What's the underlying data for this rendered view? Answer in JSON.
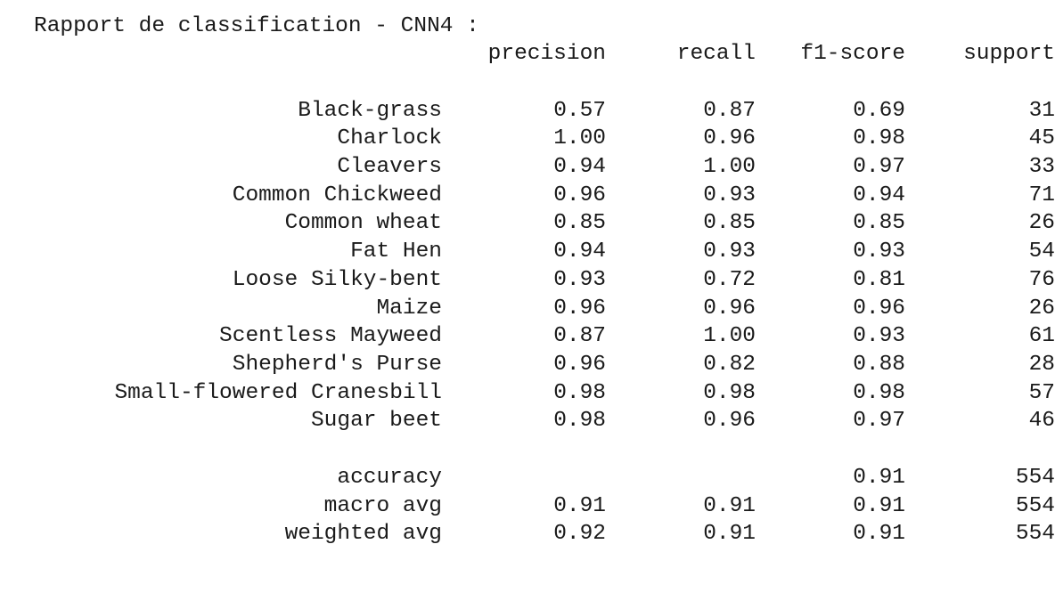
{
  "report": {
    "title": "Rapport de classification - CNN4 :",
    "headers": {
      "precision": "precision",
      "recall": "recall",
      "f1": "f1-score",
      "support": "support"
    },
    "classes": [
      {
        "label": "Black-grass",
        "precision": "0.57",
        "recall": "0.87",
        "f1": "0.69",
        "support": "31"
      },
      {
        "label": "Charlock",
        "precision": "1.00",
        "recall": "0.96",
        "f1": "0.98",
        "support": "45"
      },
      {
        "label": "Cleavers",
        "precision": "0.94",
        "recall": "1.00",
        "f1": "0.97",
        "support": "33"
      },
      {
        "label": "Common Chickweed",
        "precision": "0.96",
        "recall": "0.93",
        "f1": "0.94",
        "support": "71"
      },
      {
        "label": "Common wheat",
        "precision": "0.85",
        "recall": "0.85",
        "f1": "0.85",
        "support": "26"
      },
      {
        "label": "Fat Hen",
        "precision": "0.94",
        "recall": "0.93",
        "f1": "0.93",
        "support": "54"
      },
      {
        "label": "Loose Silky-bent",
        "precision": "0.93",
        "recall": "0.72",
        "f1": "0.81",
        "support": "76"
      },
      {
        "label": "Maize",
        "precision": "0.96",
        "recall": "0.96",
        "f1": "0.96",
        "support": "26"
      },
      {
        "label": "Scentless Mayweed",
        "precision": "0.87",
        "recall": "1.00",
        "f1": "0.93",
        "support": "61"
      },
      {
        "label": "Shepherd's Purse",
        "precision": "0.96",
        "recall": "0.82",
        "f1": "0.88",
        "support": "28"
      },
      {
        "label": "Small-flowered Cranesbill",
        "precision": "0.98",
        "recall": "0.98",
        "f1": "0.98",
        "support": "57"
      },
      {
        "label": "Sugar beet",
        "precision": "0.98",
        "recall": "0.96",
        "f1": "0.97",
        "support": "46"
      }
    ],
    "summary": [
      {
        "label": "accuracy",
        "precision": "",
        "recall": "",
        "f1": "0.91",
        "support": "554"
      },
      {
        "label": "macro avg",
        "precision": "0.91",
        "recall": "0.91",
        "f1": "0.91",
        "support": "554"
      },
      {
        "label": "weighted avg",
        "precision": "0.92",
        "recall": "0.91",
        "f1": "0.91",
        "support": "554"
      }
    ]
  }
}
